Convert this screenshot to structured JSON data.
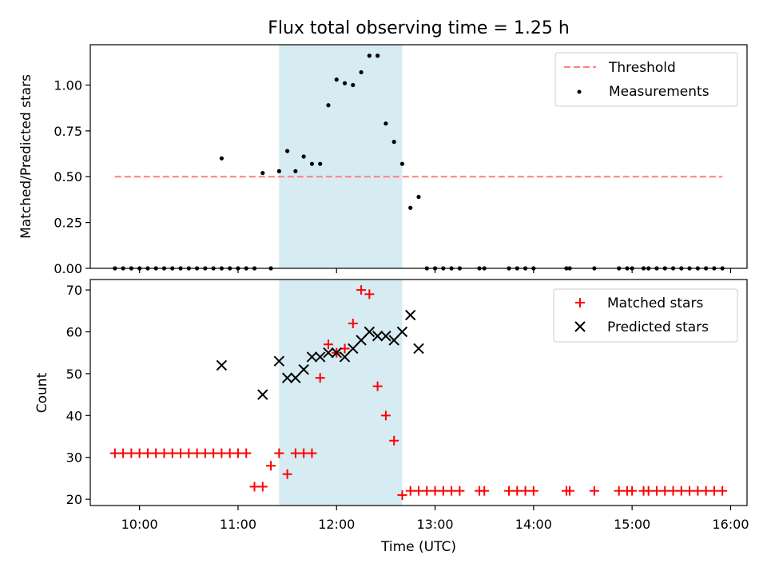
{
  "chart_data": [
    {
      "type": "scatter",
      "title": "Flux total observing time = 1.25 h",
      "ylabel": "Matched/Predicted stars",
      "xlabel": "",
      "xlim": [
        "09:30",
        "16:10"
      ],
      "ylim": [
        0,
        1.22
      ],
      "x_ticks": [
        "10:00",
        "11:00",
        "12:00",
        "13:00",
        "14:00",
        "15:00",
        "16:00"
      ],
      "x_tick_labels_shown": false,
      "y_ticks": [
        "0.00",
        "0.25",
        "0.50",
        "0.75",
        "1.00"
      ],
      "grid": false,
      "legend_position": "top-right",
      "shaded_span": {
        "start": "11:25",
        "end": "12:40",
        "color": "#add8e6"
      },
      "series": [
        {
          "name": "Threshold",
          "kind": "line",
          "style": "dashed",
          "color": "#ff7f7f",
          "x": [
            "09:45",
            "15:55"
          ],
          "y": [
            0.5,
            0.5
          ]
        },
        {
          "name": "Measurements",
          "kind": "scatter",
          "marker": "dot",
          "color": "#000000",
          "x": [
            "09:45",
            "09:50",
            "09:55",
            "10:00",
            "10:05",
            "10:10",
            "10:15",
            "10:20",
            "10:25",
            "10:30",
            "10:35",
            "10:40",
            "10:45",
            "10:50",
            "10:55",
            "11:00",
            "11:05",
            "11:10",
            "11:20",
            "10:50",
            "11:15",
            "11:25",
            "11:30",
            "11:35",
            "11:40",
            "11:45",
            "11:50",
            "11:55",
            "12:00",
            "12:05",
            "12:10",
            "12:15",
            "12:20",
            "12:25",
            "12:30",
            "12:35",
            "12:40",
            "12:45",
            "12:50",
            "12:55",
            "13:00",
            "13:05",
            "13:10",
            "13:15",
            "13:27",
            "13:30",
            "13:45",
            "13:50",
            "13:55",
            "14:00",
            "14:20",
            "14:22",
            "14:37",
            "14:52",
            "14:57",
            "15:00",
            "15:07",
            "15:10",
            "15:15",
            "15:20",
            "15:25",
            "15:30",
            "15:35",
            "15:40",
            "15:45",
            "15:50",
            "15:55"
          ],
          "y": [
            0,
            0,
            0,
            0,
            0,
            0,
            0,
            0,
            0,
            0,
            0,
            0,
            0,
            0,
            0,
            0,
            0,
            0,
            0,
            0.6,
            0.52,
            0.53,
            0.64,
            0.53,
            0.61,
            0.57,
            0.57,
            0.89,
            1.03,
            1.01,
            1.0,
            1.07,
            1.16,
            1.16,
            0.79,
            0.69,
            0.57,
            0.33,
            0.39,
            0,
            0,
            0,
            0,
            0,
            0,
            0,
            0,
            0,
            0,
            0,
            0,
            0,
            0,
            0,
            0,
            0,
            0,
            0,
            0,
            0,
            0,
            0,
            0,
            0,
            0,
            0,
            0
          ]
        }
      ]
    },
    {
      "type": "scatter",
      "title": "",
      "ylabel": "Count",
      "xlabel": "Time (UTC)",
      "xlim": [
        "09:30",
        "16:10"
      ],
      "ylim": [
        18.5,
        72.5
      ],
      "x_ticks": [
        "10:00",
        "11:00",
        "12:00",
        "13:00",
        "14:00",
        "15:00",
        "16:00"
      ],
      "y_ticks": [
        "20",
        "30",
        "40",
        "50",
        "60",
        "70"
      ],
      "grid": false,
      "legend_position": "top-right",
      "shaded_span": {
        "start": "11:25",
        "end": "12:40",
        "color": "#add8e6"
      },
      "series": [
        {
          "name": "Matched stars",
          "kind": "scatter",
          "marker": "plus",
          "color": "#ff0000",
          "x": [
            "09:45",
            "09:50",
            "09:55",
            "10:00",
            "10:05",
            "10:10",
            "10:15",
            "10:20",
            "10:25",
            "10:30",
            "10:35",
            "10:40",
            "10:45",
            "10:50",
            "10:55",
            "11:00",
            "11:05",
            "11:10",
            "11:15",
            "11:20",
            "11:25",
            "11:30",
            "11:35",
            "11:40",
            "11:45",
            "11:50",
            "11:55",
            "12:00",
            "12:05",
            "12:10",
            "12:15",
            "12:20",
            "12:25",
            "12:30",
            "12:35",
            "12:40",
            "12:45",
            "12:50",
            "12:55",
            "13:00",
            "13:05",
            "13:10",
            "13:15",
            "13:27",
            "13:30",
            "13:45",
            "13:50",
            "13:55",
            "14:00",
            "14:20",
            "14:22",
            "14:37",
            "14:52",
            "14:57",
            "15:00",
            "15:07",
            "15:10",
            "15:15",
            "15:20",
            "15:25",
            "15:30",
            "15:35",
            "15:40",
            "15:45",
            "15:50",
            "15:55"
          ],
          "y": [
            31,
            31,
            31,
            31,
            31,
            31,
            31,
            31,
            31,
            31,
            31,
            31,
            31,
            31,
            31,
            31,
            31,
            23,
            23,
            28,
            31,
            26,
            31,
            31,
            31,
            49,
            57,
            55,
            56,
            62,
            70,
            69,
            47,
            40,
            34,
            21,
            22,
            22,
            22,
            22,
            22,
            22,
            22,
            22,
            22,
            22,
            22,
            22,
            22,
            22,
            22,
            22,
            22,
            22,
            22,
            22,
            22,
            22,
            22,
            22,
            22,
            22,
            22,
            22,
            22,
            22
          ]
        },
        {
          "name": "Predicted stars",
          "kind": "scatter",
          "marker": "x",
          "color": "#000000",
          "x": [
            "10:50",
            "11:15",
            "11:25",
            "11:30",
            "11:35",
            "11:40",
            "11:45",
            "11:50",
            "11:55",
            "12:00",
            "12:05",
            "12:10",
            "12:15",
            "12:20",
            "12:25",
            "12:30",
            "12:35",
            "12:40",
            "12:45",
            "12:50"
          ],
          "y": [
            52,
            45,
            53,
            49,
            49,
            51,
            54,
            54,
            55,
            55,
            54,
            56,
            58,
            60,
            59,
            59,
            58,
            60,
            64,
            56
          ]
        }
      ]
    }
  ]
}
